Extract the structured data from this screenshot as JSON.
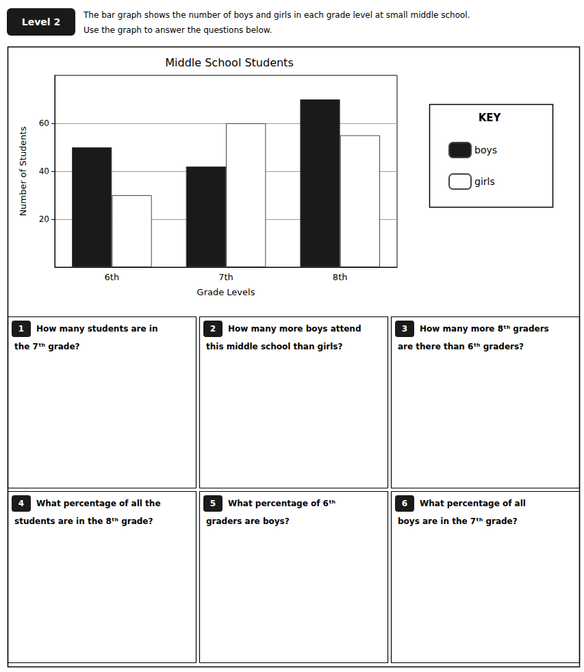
{
  "chart_data": {
    "type": "bar",
    "title": "Middle School Students",
    "xlabel": "Grade Levels",
    "ylabel": "Number of Students",
    "categories": [
      "6th",
      "7th",
      "8th"
    ],
    "series": [
      {
        "name": "boys",
        "color": "#1a1a1a",
        "values": [
          50,
          42,
          70
        ]
      },
      {
        "name": "girls",
        "color": "#ffffff",
        "values": [
          30,
          60,
          55
        ]
      }
    ],
    "ylim": [
      0,
      80
    ],
    "yticks": [
      20,
      40,
      60
    ],
    "grid": true,
    "legend": "right",
    "annotations": [
      "Level 2",
      "The bar graph shows the number of boys and girls in each grade level at small middle school.",
      "Use the graph to answer the questions below.",
      "KEY",
      "1",
      "How many students are in",
      "the 7ᵗʰ grade?",
      "2",
      "How many more boys attend",
      "this middle school than girls?",
      "3",
      "How many more 8ᵗʰ graders",
      "are there than 6ᵗʰ graders?",
      "4",
      "What percentage of all the",
      "students are in the 8ᵗʰ grade?",
      "5",
      "What percentage of 6ᵗʰ",
      "graders are boys?",
      "6",
      "What percentage of all",
      "boys are in the 7ᵗʰ grade?"
    ]
  }
}
